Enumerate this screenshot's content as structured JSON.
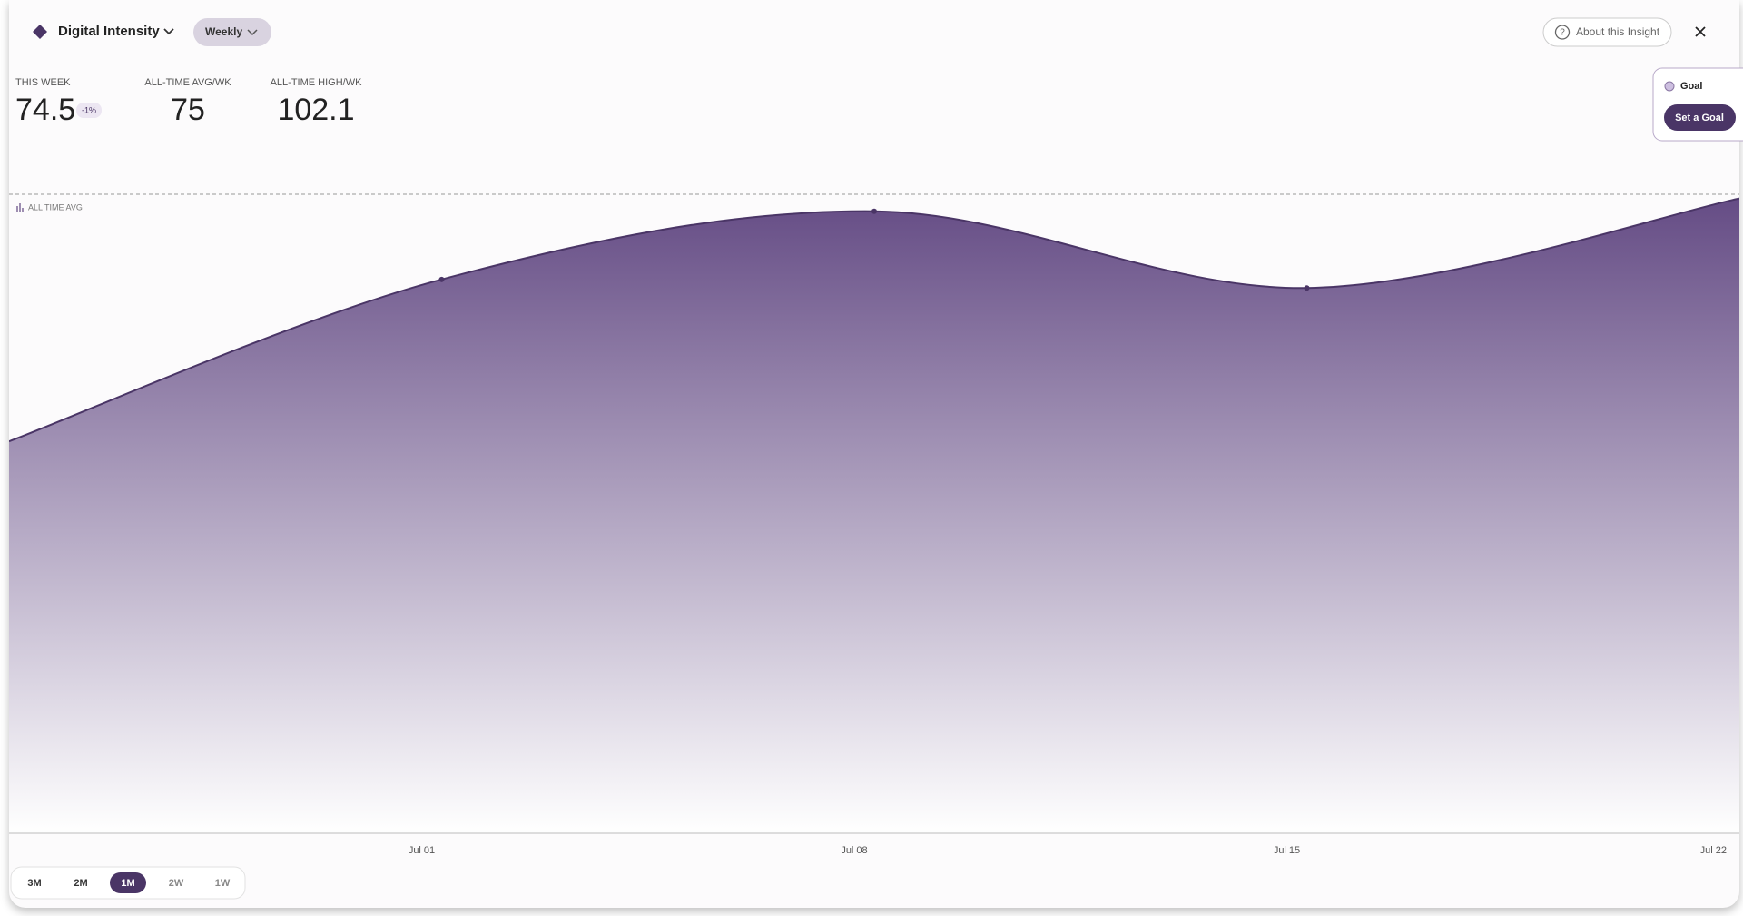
{
  "header": {
    "title": "Digital Intensity",
    "period": "Weekly",
    "about": "About this Insight"
  },
  "stats": [
    {
      "label": "THIS WEEK",
      "value": 74.5,
      "badge": "-1%"
    },
    {
      "label": "ALL-TIME AVG/WK",
      "value": 75
    },
    {
      "label": "ALL-TIME HIGH/WK",
      "value": 102.1
    }
  ],
  "goal": {
    "label": "Goal",
    "button": "Set a Goal"
  },
  "chart_data": {
    "type": "area",
    "categories": [
      null,
      "Jul 01",
      "Jul 08",
      "Jul 15",
      "Jul 22"
    ],
    "values": [
      46,
      65,
      73,
      64,
      74.5
    ],
    "color": "#4a3566",
    "ylim": [
      0,
      80
    ],
    "avg_label": "ALL TIME AVG"
  },
  "ranges": [
    "3M",
    "2M",
    "1M",
    "2W",
    "1W"
  ],
  "active_range": "1M"
}
